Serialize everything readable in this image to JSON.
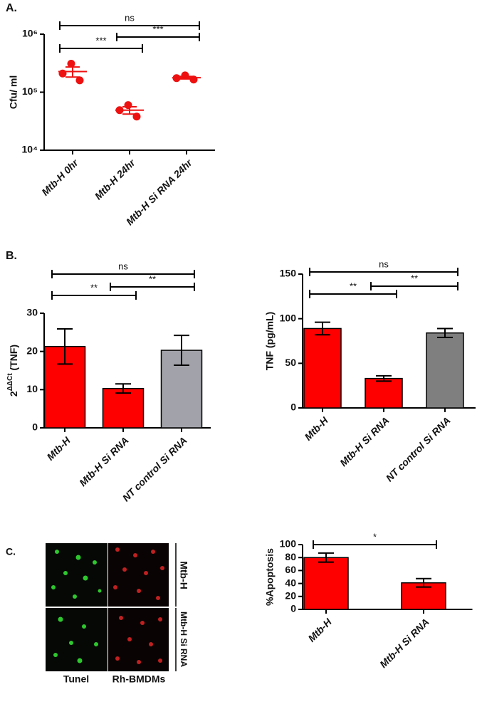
{
  "chart_data": [
    {
      "type": "scatter",
      "panel": "A.",
      "ylabel": "Cfu/ ml",
      "log_y": true,
      "categories": [
        "Mtb-H 0hr",
        "Mtb-H 24hr",
        "Mtb-H Si RNA 24hr"
      ],
      "points": [
        [
          310000,
          210000,
          160000
        ],
        [
          60000,
          49000,
          38000
        ],
        [
          195000,
          175000,
          165000
        ]
      ],
      "means": [
        227000,
        49000,
        178000
      ],
      "errors": [
        45000,
        7000,
        9000
      ],
      "color": "#ee1111",
      "ylim": [
        10000,
        1000000
      ],
      "yticks": [
        {
          "value": 10000,
          "label": "10⁴"
        },
        {
          "value": 100000,
          "label": "10⁵"
        },
        {
          "value": 1000000,
          "label": "10⁶"
        }
      ],
      "comparisons": [
        {
          "from": 0,
          "to": 2,
          "label": "ns"
        },
        {
          "from": 0,
          "to": 1,
          "label": "***"
        },
        {
          "from": 1,
          "to": 2,
          "label": "***"
        }
      ]
    },
    {
      "type": "bar",
      "panel": "B.",
      "ylabel": [
        "2",
        "ΔΔCt",
        " (TNF)"
      ],
      "categories": [
        "Mtb-H",
        "Mtb-H Si RNA",
        "NT control Si RNA"
      ],
      "values": [
        21.3,
        10.3,
        20.3
      ],
      "errors": [
        4.6,
        1.2,
        3.9
      ],
      "colors": [
        "#ff0000",
        "#ff0000",
        "#a2a2aa"
      ],
      "ylim": [
        0,
        30
      ],
      "yticks": [
        0,
        10,
        20,
        30
      ],
      "comparisons": [
        {
          "from": 0,
          "to": 2,
          "label": "ns"
        },
        {
          "from": 0,
          "to": 1,
          "label": "**"
        },
        {
          "from": 1,
          "to": 2,
          "label": "**"
        }
      ]
    },
    {
      "type": "bar",
      "ylabel": "TNF (pg/mL)",
      "categories": [
        "Mtb-H",
        "Mtb-H Si RNA",
        "NT control Si RNA"
      ],
      "values": [
        89,
        33,
        84
      ],
      "errors": [
        7,
        3,
        5
      ],
      "colors": [
        "#ff0000",
        "#ff0000",
        "#7f7f7f"
      ],
      "ylim": [
        0,
        150
      ],
      "yticks": [
        0,
        50,
        100,
        150
      ],
      "comparisons": [
        {
          "from": 0,
          "to": 2,
          "label": "ns"
        },
        {
          "from": 0,
          "to": 1,
          "label": "**"
        },
        {
          "from": 1,
          "to": 2,
          "label": "**"
        }
      ]
    },
    {
      "type": "bar",
      "ylabel": "%Apoptosis",
      "categories": [
        "Mtb-H",
        "Mtb-H Si RNA"
      ],
      "values": [
        80,
        41
      ],
      "errors": [
        7,
        6.5
      ],
      "colors": [
        "#ff0000",
        "#ff0000"
      ],
      "ylim": [
        0,
        100
      ],
      "yticks": [
        0,
        20,
        40,
        60,
        80,
        100
      ],
      "comparisons": [
        {
          "from": 0,
          "to": 1,
          "label": "*"
        }
      ]
    }
  ],
  "micrograph": {
    "panel": "C.",
    "columns": [
      "Tunel",
      "Rh-BMDMs"
    ],
    "rows": [
      "Mtb-H",
      "Mtb-H Si RNA"
    ]
  }
}
